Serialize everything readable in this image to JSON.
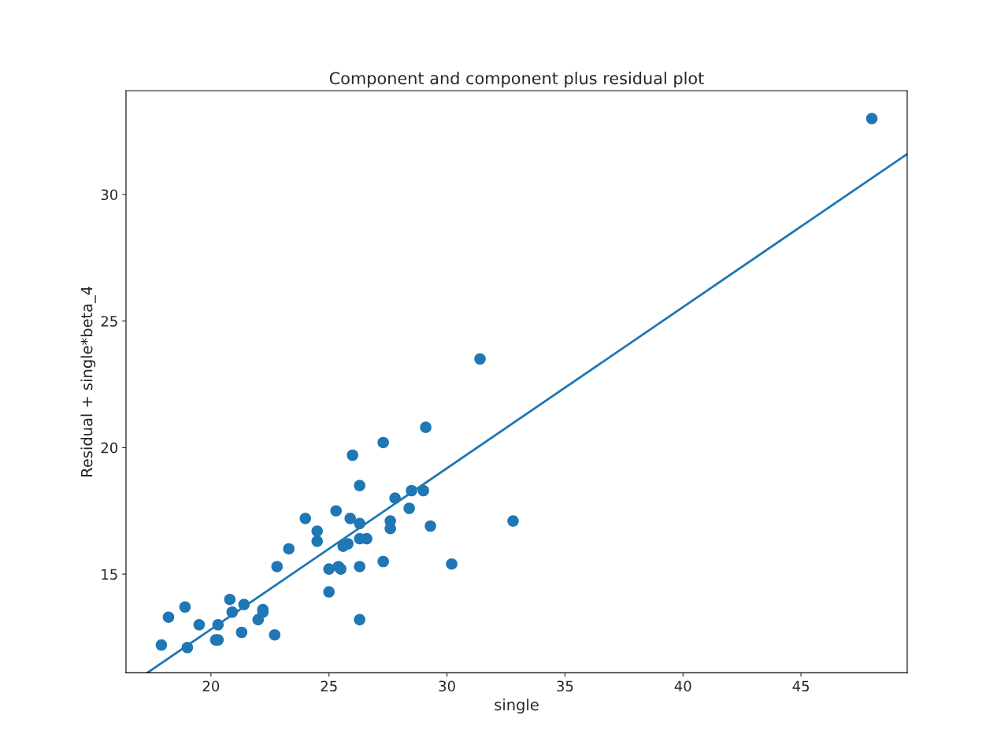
{
  "chart_data": {
    "type": "scatter",
    "title": "Component and component plus residual plot",
    "xlabel": "single",
    "ylabel": "Residual + single*beta_4",
    "xlim": [
      16.4,
      49.5
    ],
    "ylim": [
      11.1,
      34.1
    ],
    "xticks": [
      20,
      25,
      30,
      35,
      40,
      45
    ],
    "yticks": [
      15,
      20,
      25,
      30
    ],
    "grid": false,
    "legend": false,
    "marker": "circle",
    "series": [
      {
        "color": "#1f77b4",
        "x": [
          17.9,
          18.2,
          18.9,
          19.0,
          19.5,
          20.2,
          20.3,
          20.3,
          20.8,
          20.9,
          21.3,
          21.4,
          22.0,
          22.2,
          22.2,
          22.7,
          22.8,
          23.3,
          24.0,
          24.5,
          24.5,
          25.0,
          25.0,
          25.3,
          25.4,
          25.5,
          25.6,
          25.8,
          25.9,
          26.0,
          26.3,
          26.3,
          26.3,
          26.3,
          26.3,
          26.6,
          27.3,
          27.3,
          27.6,
          27.6,
          27.8,
          28.4,
          28.5,
          29.0,
          29.1,
          29.3,
          30.2,
          31.4,
          32.8,
          48.0
        ],
        "values": [
          12.2,
          13.3,
          13.7,
          12.1,
          13.0,
          12.4,
          12.4,
          13.0,
          14.0,
          13.5,
          12.7,
          13.8,
          13.2,
          13.6,
          13.5,
          12.6,
          15.3,
          16.0,
          17.2,
          16.7,
          16.3,
          15.2,
          14.3,
          17.5,
          15.3,
          15.2,
          16.1,
          16.2,
          17.2,
          19.7,
          18.5,
          17.0,
          16.4,
          15.3,
          13.2,
          16.4,
          20.2,
          15.5,
          17.1,
          16.8,
          18.0,
          17.6,
          18.3,
          18.3,
          20.8,
          16.9,
          15.4,
          23.5,
          17.1,
          33.0
        ]
      },
      {
        "type": "line",
        "color": "#1f77b4",
        "marker": "none",
        "line_style": "solid",
        "x": [
          17.3,
          49.5
        ],
        "values": [
          11.1,
          31.6
        ]
      }
    ]
  }
}
